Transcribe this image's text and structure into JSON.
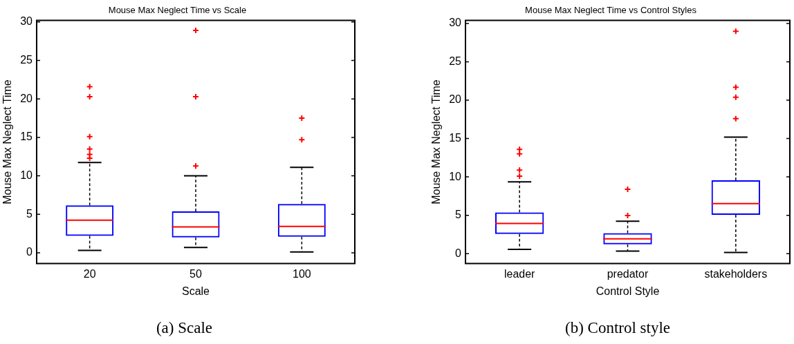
{
  "chart_data": [
    {
      "type": "box",
      "title": "Mouse Max Neglect Time vs Scale",
      "xlabel": "Scale",
      "ylabel": "Mouse Max Neglect Time",
      "categories": [
        "20",
        "50",
        "100"
      ],
      "ylim": [
        -1.4,
        30.2
      ],
      "yticks": [
        0,
        5,
        10,
        15,
        20,
        25,
        30
      ],
      "grid": false,
      "marker": "cross",
      "annotations": [
        "(a) Scale"
      ],
      "series": [
        {
          "color": "#0000ff",
          "boxes": [
            {
              "low": 0.31,
              "q1": 2.21,
              "median": 4.24,
              "q3": 6.17,
              "high": 11.74,
              "outliers": [
                21.6,
                20.3,
                15.1,
                13.5,
                12.8,
                12.3
              ]
            },
            {
              "low": 0.69,
              "q1": 2.0,
              "median": 3.36,
              "q3": 5.39,
              "high": 10.0,
              "outliers": [
                28.9,
                20.3,
                11.3
              ]
            },
            {
              "low": 0.12,
              "q1": 2.09,
              "median": 3.43,
              "q3": 6.36,
              "high": 11.12,
              "outliers": [
                17.5,
                14.7
              ]
            }
          ]
        }
      ]
    },
    {
      "type": "box",
      "title": "Mouse Max Neglect Time vs Control Styles",
      "xlabel": "Control Style",
      "ylabel": "Mouse Max Neglect Time",
      "categories": [
        "leader",
        "predator",
        "stakeholders"
      ],
      "ylim": [
        -1.3,
        30.4
      ],
      "yticks": [
        0,
        5,
        10,
        15,
        20,
        25,
        30
      ],
      "grid": false,
      "marker": "cross",
      "annotations": [
        "(b) Control style"
      ],
      "series": [
        {
          "color": "#0000ff",
          "boxes": [
            {
              "low": 0.56,
              "q1": 2.55,
              "median": 3.94,
              "q3": 5.37,
              "high": 9.35,
              "outliers": [
                13.6,
                13.0,
                10.9,
                10.1
              ]
            },
            {
              "low": 0.34,
              "q1": 1.21,
              "median": 1.93,
              "q3": 2.67,
              "high": 4.22,
              "outliers": [
                8.4,
                4.97
              ]
            },
            {
              "low": 0.16,
              "q1": 5.06,
              "median": 6.52,
              "q3": 9.57,
              "high": 15.2,
              "outliers": [
                29.0,
                21.7,
                20.4,
                17.6
              ]
            }
          ]
        }
      ]
    }
  ]
}
